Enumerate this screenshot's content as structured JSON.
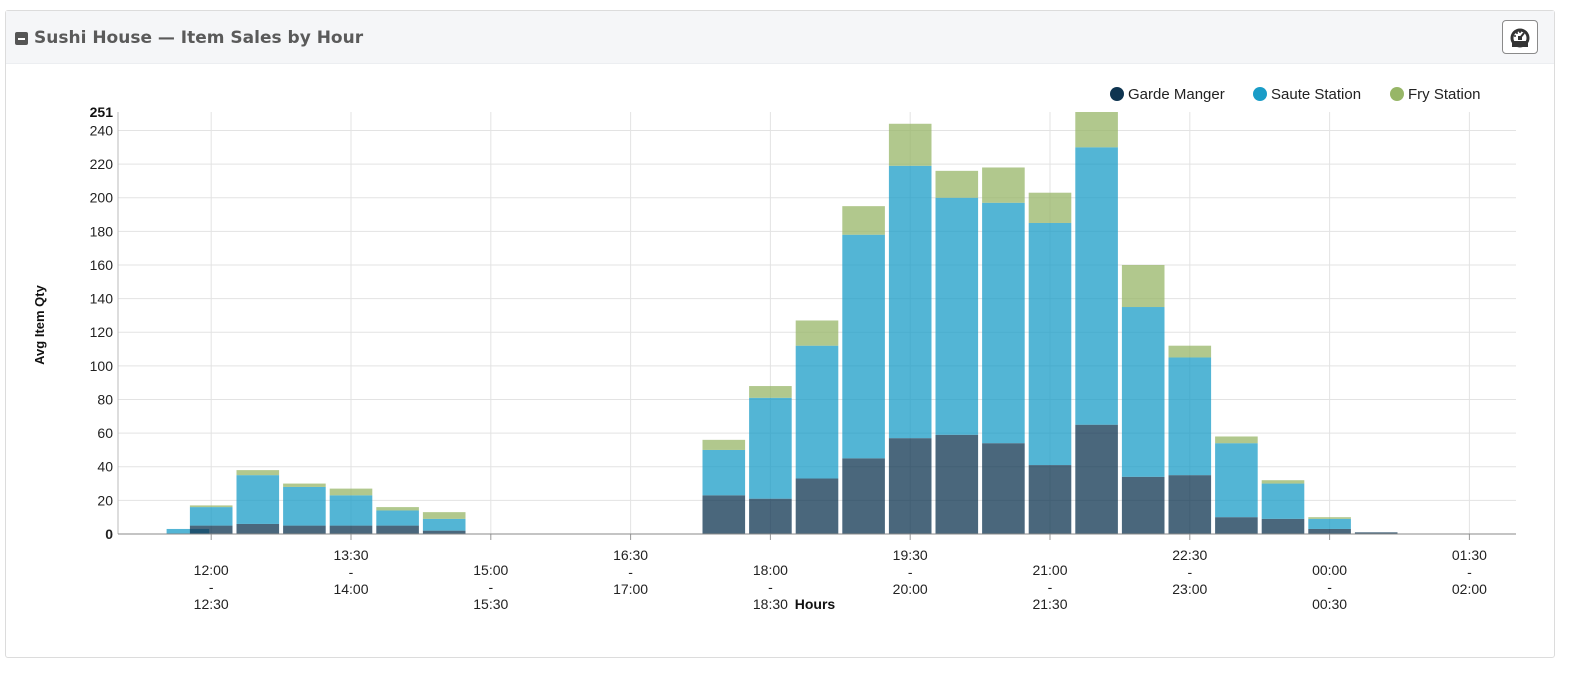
{
  "panel": {
    "title": "Sushi House — Item Sales by Hour",
    "collapse_icon": "minus-square-icon",
    "dashboard_icon": "speedometer-icon"
  },
  "chart_data": {
    "type": "bar",
    "stacked": true,
    "title": "",
    "xlabel": "Hours",
    "ylabel": "Avg Item Qty",
    "ylim": [
      0,
      251
    ],
    "y_ticks": [
      0,
      20,
      40,
      60,
      80,
      100,
      120,
      140,
      160,
      180,
      200,
      220,
      240
    ],
    "y_max_label": "251",
    "grid": true,
    "legend_position": "top-right",
    "x_domain": [
      11.0,
      26.0
    ],
    "x_ticks": [
      {
        "x": 12.0,
        "label": [
          "12:00",
          "-",
          "12:30"
        ]
      },
      {
        "x": 13.5,
        "label": [
          "13:30",
          "-",
          "14:00"
        ]
      },
      {
        "x": 15.0,
        "label": [
          "15:00",
          "-",
          "15:30"
        ]
      },
      {
        "x": 16.5,
        "label": [
          "16:30",
          "-",
          "17:00"
        ]
      },
      {
        "x": 18.0,
        "label": [
          "18:00",
          "-",
          "18:30"
        ]
      },
      {
        "x": 19.5,
        "label": [
          "19:30",
          "-",
          "20:00"
        ]
      },
      {
        "x": 21.0,
        "label": [
          "21:00",
          "-",
          "21:30"
        ]
      },
      {
        "x": 22.5,
        "label": [
          "22:30",
          "-",
          "23:00"
        ]
      },
      {
        "x": 24.0,
        "label": [
          "00:00",
          "-",
          "00:30"
        ]
      },
      {
        "x": 25.5,
        "label": [
          "01:30",
          "-",
          "02:00"
        ]
      }
    ],
    "x": [
      11.75,
      12.0,
      12.5,
      13.0,
      13.5,
      14.0,
      14.5,
      17.5,
      18.0,
      18.5,
      19.0,
      19.5,
      20.0,
      20.5,
      21.0,
      21.5,
      22.0,
      22.5,
      23.0,
      23.5,
      24.0,
      24.5
    ],
    "series": [
      {
        "name": "Garde Manger",
        "color": "#0e3450",
        "values": [
          0,
          5,
          6,
          5,
          5,
          5,
          2,
          23,
          21,
          33,
          45,
          57,
          59,
          54,
          41,
          65,
          34,
          35,
          10,
          9,
          3,
          1
        ]
      },
      {
        "name": "Saute Station",
        "color": "#1a9cc7",
        "values": [
          3,
          11,
          29,
          23,
          18,
          9,
          7,
          27,
          60,
          79,
          133,
          162,
          141,
          143,
          144,
          165,
          101,
          70,
          44,
          21,
          6,
          0
        ]
      },
      {
        "name": "Fry Station",
        "color": "#97b667",
        "values": [
          0,
          1,
          3,
          2,
          4,
          2,
          4,
          6,
          7,
          15,
          17,
          25,
          16,
          21,
          18,
          21,
          25,
          7,
          4,
          2,
          1,
          0
        ]
      }
    ]
  }
}
